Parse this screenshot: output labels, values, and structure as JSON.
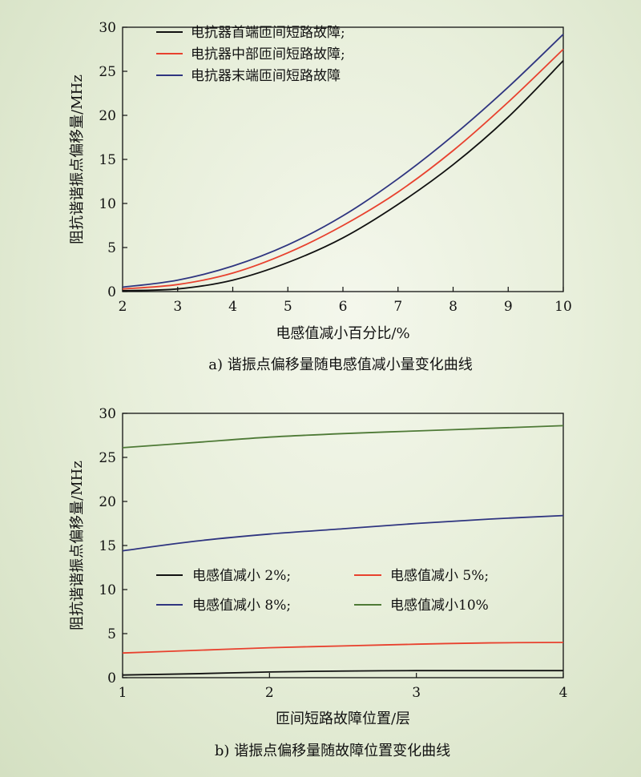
{
  "colors": {
    "black": "#111111",
    "red": "#e8412e",
    "blue": "#2f3580",
    "green": "#4e7a36"
  },
  "chart_data": [
    {
      "type": "line",
      "caption": "a) 谐振点偏移量随电感值减小量变化曲线",
      "xlabel": "电感值减小百分比/%",
      "ylabel": "阻抗谐谐振点偏移量/MHz",
      "xlim": [
        2,
        10
      ],
      "ylim": [
        0,
        30
      ],
      "xticks": [
        2,
        3,
        4,
        5,
        6,
        7,
        8,
        9,
        10
      ],
      "yticks": [
        0,
        5,
        10,
        15,
        20,
        25,
        30
      ],
      "grid": false,
      "legend_position": "top-left",
      "x": [
        2,
        3,
        4,
        5,
        6,
        7,
        8,
        9,
        10
      ],
      "series": [
        {
          "name": "电抗器首端匝间短路故障;",
          "color": "black",
          "values": [
            0.1,
            0.3,
            1.3,
            3.3,
            6.1,
            9.9,
            14.4,
            19.8,
            26.2
          ]
        },
        {
          "name": "电抗器中部匝间短路故障;",
          "color": "red",
          "values": [
            0.3,
            0.8,
            2.1,
            4.4,
            7.5,
            11.3,
            16.0,
            21.5,
            27.5
          ]
        },
        {
          "name": "电抗器末端匝间短路故障",
          "color": "blue",
          "values": [
            0.5,
            1.3,
            2.9,
            5.3,
            8.6,
            12.8,
            17.7,
            23.2,
            29.2
          ]
        }
      ]
    },
    {
      "type": "line",
      "caption": "b) 谐振点偏移量随故障位置变化曲线",
      "xlabel": "匝间短路故障位置/层",
      "ylabel": "阻抗谐谐振点偏移量/MHz",
      "xlim": [
        1,
        4
      ],
      "ylim": [
        0,
        30
      ],
      "xticks": [
        1,
        2,
        3,
        4
      ],
      "yticks": [
        0,
        5,
        10,
        15,
        20,
        25,
        30
      ],
      "grid": false,
      "legend_position": "middle-left",
      "x": [
        1,
        1.5,
        2,
        2.5,
        3,
        3.5,
        4
      ],
      "series": [
        {
          "name": "电感值减小 2%;",
          "color": "black",
          "values": [
            0.3,
            0.45,
            0.65,
            0.75,
            0.8,
            0.8,
            0.8
          ]
        },
        {
          "name": "电感值减小 5%;",
          "color": "red",
          "values": [
            2.8,
            3.1,
            3.4,
            3.6,
            3.8,
            3.95,
            4.0
          ]
        },
        {
          "name": "电感值减小 8%;",
          "color": "blue",
          "values": [
            14.4,
            15.5,
            16.3,
            16.9,
            17.5,
            18.0,
            18.4
          ]
        },
        {
          "name": "电感值减小10%",
          "color": "green",
          "values": [
            26.1,
            26.7,
            27.3,
            27.7,
            28.0,
            28.3,
            28.6
          ]
        }
      ]
    }
  ]
}
